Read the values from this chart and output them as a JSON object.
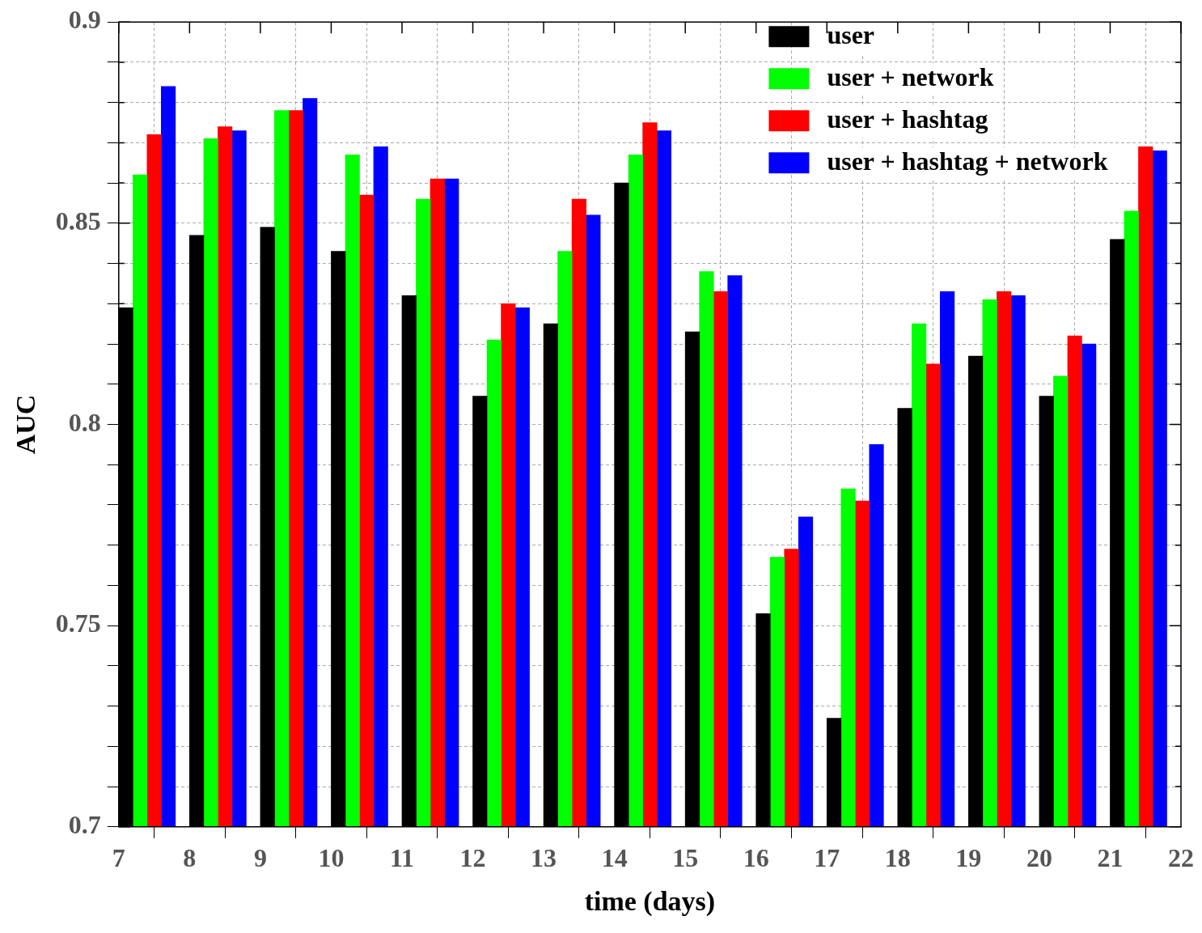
{
  "chart_data": {
    "type": "bar",
    "xlabel": "time (days)",
    "ylabel": "AUC",
    "x": [
      7.4,
      8.4,
      9.4,
      10.4,
      11.4,
      12.4,
      13.4,
      14.4,
      15.4,
      16.4,
      17.4,
      18.4,
      19.4,
      20.4,
      21.4
    ],
    "series": [
      {
        "name": "user",
        "color": "#000000",
        "values": [
          0.829,
          0.847,
          0.849,
          0.843,
          0.832,
          0.807,
          0.825,
          0.86,
          0.823,
          0.753,
          0.727,
          0.804,
          0.817,
          0.807,
          0.846
        ]
      },
      {
        "name": "user + network",
        "color": "#00ff00",
        "values": [
          0.862,
          0.871,
          0.878,
          0.867,
          0.856,
          0.821,
          0.843,
          0.867,
          0.838,
          0.767,
          0.784,
          0.825,
          0.831,
          0.812,
          0.853
        ]
      },
      {
        "name": "user + hashtag",
        "color": "#ff0000",
        "values": [
          0.872,
          0.874,
          0.878,
          0.857,
          0.861,
          0.83,
          0.856,
          0.875,
          0.833,
          0.769,
          0.781,
          0.815,
          0.833,
          0.822,
          0.869
        ]
      },
      {
        "name": "user + hashtag + network",
        "color": "#0000ff",
        "values": [
          0.884,
          0.873,
          0.881,
          0.869,
          0.861,
          0.829,
          0.852,
          0.873,
          0.837,
          0.777,
          0.795,
          0.833,
          0.832,
          0.82,
          0.868
        ]
      }
    ],
    "xlim": [
      7,
      22
    ],
    "xticks": [
      7,
      8,
      9,
      10,
      11,
      12,
      13,
      14,
      15,
      16,
      17,
      18,
      19,
      20,
      21,
      22
    ],
    "ylim": [
      0.7,
      0.9
    ],
    "yticks": [
      0.7,
      {
        "value": 0.71,
        "label": null
      },
      {
        "value": 0.72,
        "label": null
      },
      {
        "value": 0.73,
        "label": null
      },
      {
        "value": 0.74,
        "label": null
      },
      0.75,
      {
        "value": 0.76,
        "label": null
      },
      {
        "value": 0.77,
        "label": null
      },
      {
        "value": 0.78,
        "label": null
      },
      {
        "value": 0.79,
        "label": null
      },
      0.8,
      {
        "value": 0.81,
        "label": null
      },
      {
        "value": 0.82,
        "label": null
      },
      {
        "value": 0.83,
        "label": null
      },
      {
        "value": 0.84,
        "label": null
      },
      0.85,
      {
        "value": 0.86,
        "label": null
      },
      {
        "value": 0.87,
        "label": null
      },
      {
        "value": 0.88,
        "label": null
      },
      {
        "value": 0.89,
        "label": null
      },
      0.9
    ],
    "grid": true,
    "legend": "top right"
  }
}
